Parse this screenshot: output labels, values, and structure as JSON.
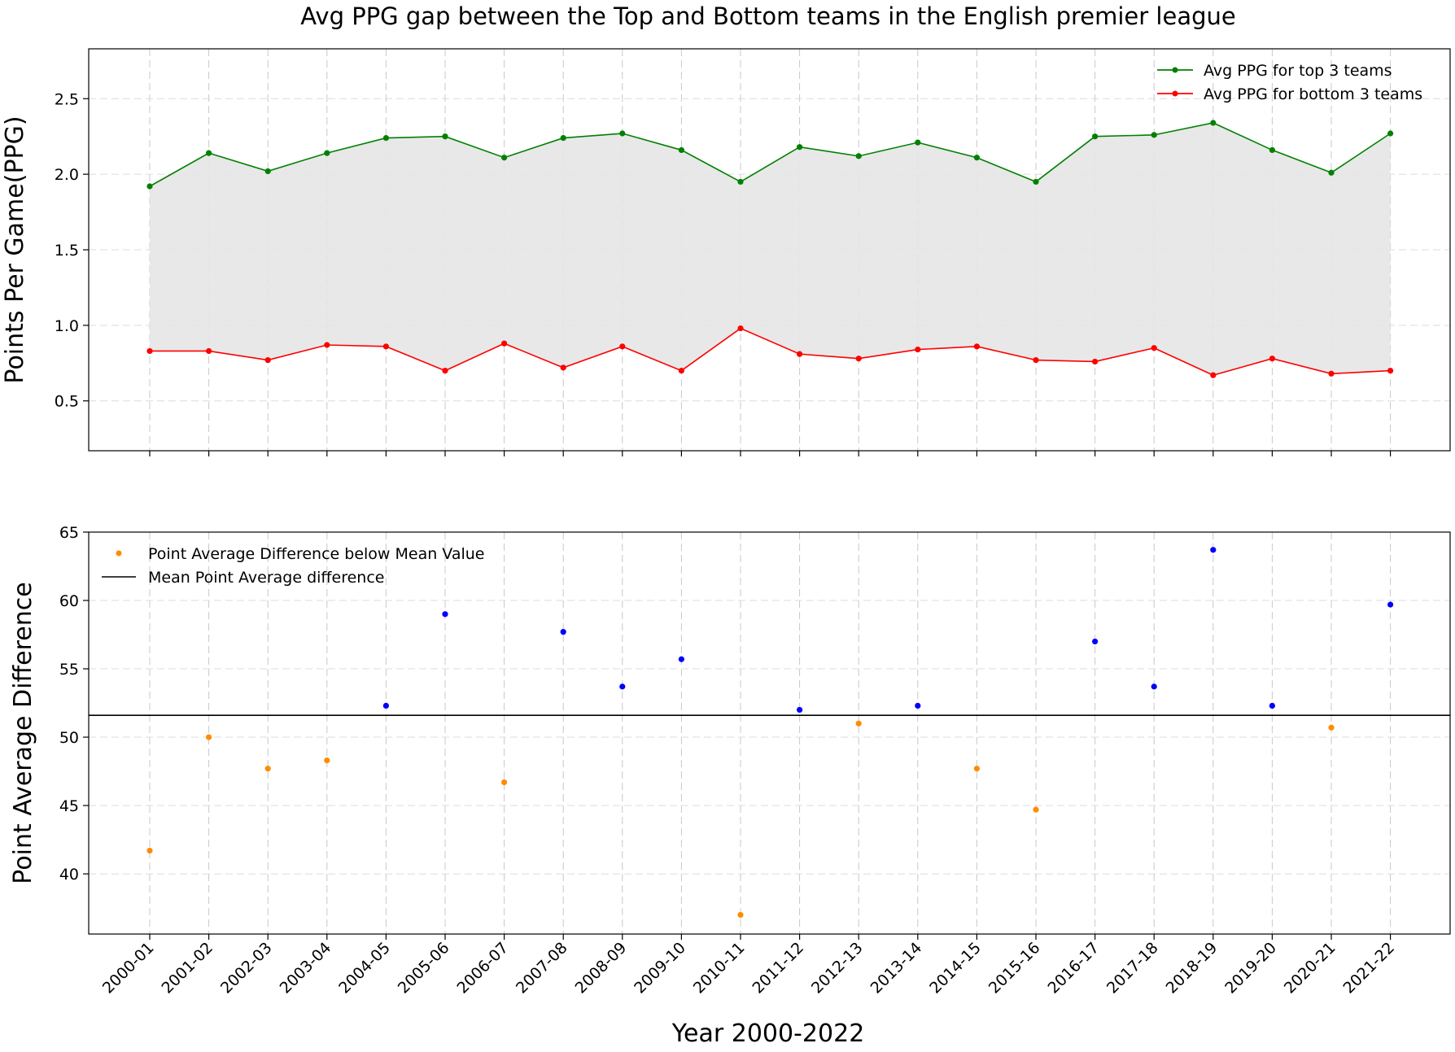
{
  "title": "Avg PPG gap between the Top and Bottom teams in the English premier league",
  "xlabel": "Year 2000-2022",
  "chart_data": [
    {
      "type": "line",
      "ylabel": "Points Per Game(PPG)",
      "ylim": [
        0.17,
        2.83
      ],
      "yticks": [
        0.5,
        1.0,
        1.5,
        2.0,
        2.5
      ],
      "grid": true,
      "legend_position": "top-right",
      "fill_between": true,
      "categories": [
        "2000-01",
        "2001-02",
        "2002-03",
        "2003-04",
        "2004-05",
        "2005-06",
        "2006-07",
        "2007-08",
        "2008-09",
        "2009-10",
        "2010-11",
        "2011-12",
        "2012-13",
        "2013-14",
        "2014-15",
        "2015-16",
        "2016-17",
        "2017-18",
        "2018-19",
        "2019-20",
        "2020-21",
        "2021-22"
      ],
      "series": [
        {
          "name": "Avg PPG for top 3 teams",
          "color": "#008000",
          "values": [
            1.92,
            2.14,
            2.02,
            2.14,
            2.24,
            2.25,
            2.11,
            2.24,
            2.27,
            2.16,
            1.95,
            2.18,
            2.12,
            2.21,
            2.11,
            1.95,
            2.25,
            2.26,
            2.34,
            2.16,
            2.01,
            2.27
          ]
        },
        {
          "name": "Avg PPG for bottom 3 teams",
          "color": "#ff0000",
          "values": [
            0.83,
            0.83,
            0.77,
            0.87,
            0.86,
            0.7,
            0.88,
            0.72,
            0.86,
            0.7,
            0.98,
            0.81,
            0.78,
            0.84,
            0.86,
            0.77,
            0.76,
            0.85,
            0.67,
            0.78,
            0.68,
            0.7
          ]
        }
      ]
    },
    {
      "type": "scatter",
      "ylabel": "Point Average Difference",
      "ylim": [
        35.6,
        65
      ],
      "yticks": [
        40,
        45,
        50,
        55,
        60,
        65
      ],
      "grid": true,
      "legend_position": "top-left",
      "categories": [
        "2000-01",
        "2001-02",
        "2002-03",
        "2003-04",
        "2004-05",
        "2005-06",
        "2006-07",
        "2007-08",
        "2008-09",
        "2009-10",
        "2010-11",
        "2011-12",
        "2012-13",
        "2013-14",
        "2014-15",
        "2015-16",
        "2016-17",
        "2017-18",
        "2018-19",
        "2019-20",
        "2020-21",
        "2021-22"
      ],
      "values": [
        41.7,
        50.0,
        47.7,
        48.3,
        52.3,
        59.0,
        46.7,
        57.7,
        53.7,
        55.7,
        37.0,
        52.0,
        51.0,
        52.3,
        47.7,
        44.7,
        57.0,
        53.7,
        63.7,
        52.3,
        50.7,
        59.7
      ],
      "below_color": "#ff8c00",
      "above_color": "#0000ff",
      "mean_line": {
        "name": "Mean Point Average difference",
        "value": 51.6,
        "color": "#000000"
      },
      "below_series_name": "Point Average Difference below Mean Value"
    }
  ]
}
